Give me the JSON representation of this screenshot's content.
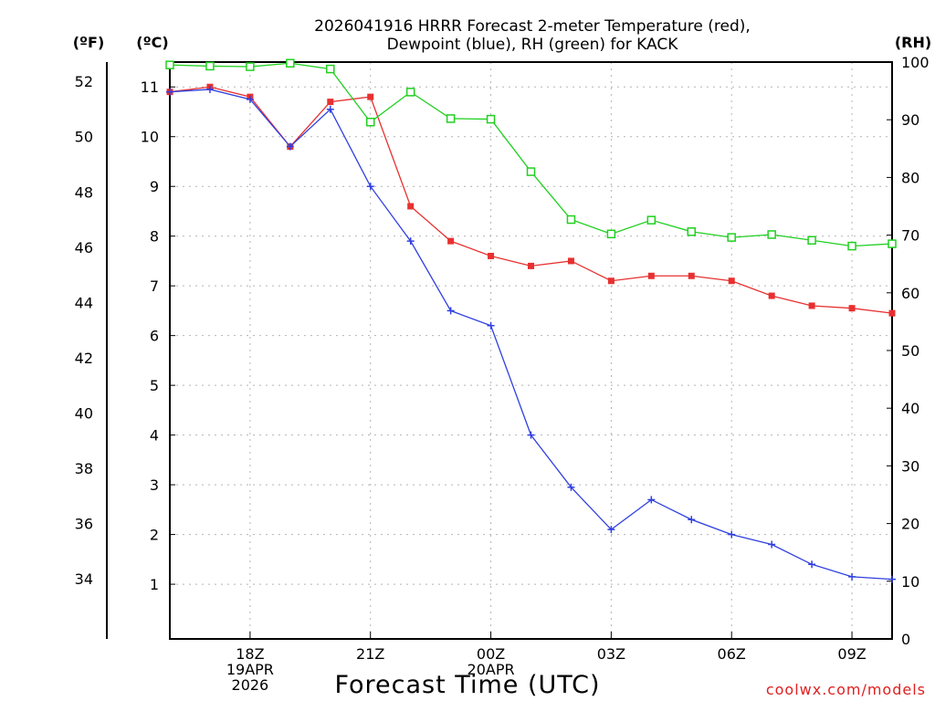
{
  "title": {
    "line1": "2026041916 HRRR Forecast 2-meter Temperature (red),",
    "line2": "Dewpoint (blue), RH (green) for KACK"
  },
  "units": {
    "fahrenheit": "(ºF)",
    "celsius": "(ºC)",
    "rh": "(RH)"
  },
  "xlabel": "Forecast Time (UTC)",
  "credit": "coolwx.com/models",
  "chart_data": {
    "type": "line",
    "title": "2026041916 HRRR Forecast 2-meter Temperature (red), Dewpoint (blue), RH (green) for KACK",
    "xlabel": "Forecast Time (UTC)",
    "x": [
      "16Z",
      "17Z",
      "18Z",
      "19Z",
      "20Z",
      "21Z",
      "22Z",
      "23Z",
      "00Z",
      "01Z",
      "02Z",
      "03Z",
      "04Z",
      "05Z",
      "06Z",
      "07Z",
      "08Z",
      "09Z",
      "10Z"
    ],
    "x_ticks": [
      {
        "index": 2,
        "lines": [
          "18Z",
          "19APR",
          "2026"
        ]
      },
      {
        "index": 5,
        "lines": [
          "21Z"
        ]
      },
      {
        "index": 8,
        "lines": [
          "00Z",
          "20APR"
        ]
      },
      {
        "index": 11,
        "lines": [
          "03Z"
        ]
      },
      {
        "index": 14,
        "lines": [
          "06Z"
        ]
      },
      {
        "index": 17,
        "lines": [
          "09Z"
        ]
      }
    ],
    "left_celsius_axis": {
      "label": "(ºC)",
      "ylim": [
        -0.1,
        11.5
      ],
      "ticks": [
        1,
        2,
        3,
        4,
        5,
        6,
        7,
        8,
        9,
        10,
        11
      ]
    },
    "left_fahrenheit_axis": {
      "label": "(ºF)",
      "ticks": [
        34,
        36,
        38,
        40,
        42,
        44,
        46,
        48,
        50,
        52
      ]
    },
    "right_rh_axis": {
      "label": "(RH)",
      "ylim": [
        0,
        100
      ],
      "ticks": [
        0,
        10,
        20,
        30,
        40,
        50,
        60,
        70,
        80,
        90,
        100
      ]
    },
    "series": [
      {
        "name": "Temperature",
        "color": "#e83030",
        "marker": "filled-square",
        "axis": "celsius",
        "values": [
          10.9,
          11.0,
          10.8,
          9.8,
          10.7,
          10.8,
          8.6,
          7.9,
          7.6,
          7.4,
          7.5,
          7.1,
          7.2,
          7.2,
          7.1,
          6.8,
          6.6,
          6.55,
          6.45
        ]
      },
      {
        "name": "Dewpoint",
        "color": "#3040e0",
        "marker": "plus",
        "axis": "celsius",
        "values": [
          10.9,
          10.95,
          10.75,
          9.8,
          10.55,
          9.0,
          7.9,
          6.5,
          6.2,
          4.0,
          2.95,
          2.1,
          2.7,
          2.3,
          2.0,
          1.8,
          1.4,
          1.15,
          1.1
        ]
      },
      {
        "name": "RH",
        "color": "#20d020",
        "marker": "open-square",
        "axis": "rh",
        "values": [
          99.5,
          99.3,
          99.2,
          99.8,
          98.8,
          89.6,
          94.8,
          90.2,
          90.1,
          81.0,
          72.7,
          70.2,
          72.6,
          70.6,
          69.6,
          70.1,
          69.1,
          68.1,
          68.5
        ]
      }
    ]
  }
}
